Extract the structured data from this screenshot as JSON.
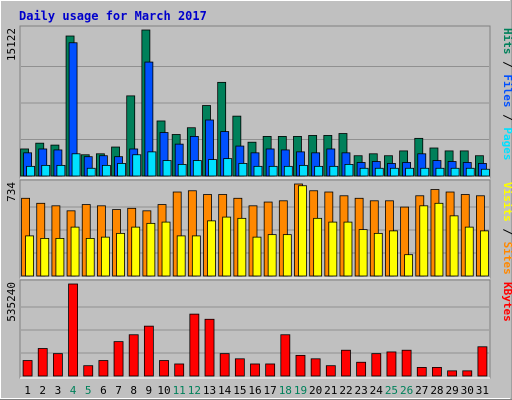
{
  "chart_data": {
    "type": "bar",
    "title": "Daily usage for March 2017",
    "categories": [
      "1",
      "2",
      "3",
      "4",
      "5",
      "6",
      "7",
      "8",
      "9",
      "10",
      "11",
      "12",
      "13",
      "14",
      "15",
      "16",
      "17",
      "18",
      "19",
      "20",
      "21",
      "22",
      "23",
      "24",
      "25",
      "26",
      "27",
      "28",
      "29",
      "30",
      "31"
    ],
    "weekend_days": [
      4,
      5,
      11,
      12,
      18,
      19,
      25,
      26
    ],
    "colors": {
      "title": "#0000cc",
      "background": "#c0c0c0",
      "hits": "#00805a",
      "files": "#0050ff",
      "pages": "#00e0ff",
      "visits": "#ff8800",
      "sites": "#ffff00",
      "kbytes": "#ff0000",
      "weekend_label": "#00805a"
    },
    "panels": [
      {
        "name": "hits-files-pages",
        "ymax_label": "15122",
        "ymax": 15122,
        "legend": [
          {
            "name": "Pages",
            "color": "#00e0ff"
          },
          {
            "name": "Files",
            "color": "#0050ff"
          },
          {
            "name": "Hits",
            "color": "#00805a"
          }
        ],
        "series": [
          {
            "name": "Hits",
            "values": [
              2800,
              3400,
              3200,
              14500,
              2200,
              2300,
              3000,
              8300,
              15122,
              5700,
              4300,
              5000,
              7300,
              9700,
              6200,
              3500,
              4100,
              4100,
              4100,
              4200,
              4200,
              4400,
              2100,
              2300,
              2100,
              2600,
              3900,
              2900,
              2600,
              2600,
              2100
            ]
          },
          {
            "name": "Files",
            "values": [
              2400,
              2800,
              2700,
              13800,
              2000,
              2100,
              2000,
              2800,
              11800,
              4500,
              3300,
              4100,
              5800,
              4600,
              3100,
              2400,
              2800,
              2700,
              2500,
              2400,
              2800,
              2400,
              1400,
              1500,
              1300,
              1400,
              2300,
              1600,
              1500,
              1400,
              1300
            ]
          },
          {
            "name": "Pages",
            "values": [
              1000,
              1100,
              1100,
              2300,
              800,
              1100,
              1300,
              2200,
              2500,
              1600,
              1200,
              1600,
              1700,
              1800,
              1300,
              1000,
              1000,
              1000,
              1100,
              1000,
              1000,
              1200,
              800,
              800,
              800,
              800,
              800,
              800,
              800,
              800,
              700
            ]
          }
        ]
      },
      {
        "name": "visits-sites",
        "ymax_label": "734",
        "ymax": 734,
        "legend": [
          {
            "name": "Sites",
            "color": "#ff8800"
          },
          {
            "name": "Visits",
            "color": "#ffff00"
          }
        ],
        "series": [
          {
            "name": "Visits",
            "values": [
              620,
              580,
              560,
              520,
              570,
              560,
              530,
              540,
              520,
              570,
              670,
              680,
              650,
              650,
              620,
              560,
              590,
              600,
              734,
              680,
              670,
              640,
              620,
              600,
              600,
              550,
              640,
              690,
              670,
              650,
              640
            ]
          },
          {
            "name": "Sites",
            "values": [
              320,
              300,
              300,
              390,
              300,
              310,
              340,
              390,
              420,
              430,
              320,
              320,
              440,
              470,
              460,
              310,
              330,
              330,
              720,
              460,
              430,
              430,
              370,
              340,
              360,
              170,
              560,
              580,
              480,
              390,
              360
            ]
          }
        ]
      },
      {
        "name": "kbytes",
        "ymax_label": "535240",
        "ymax": 535240,
        "legend": [
          {
            "name": "KBytes",
            "color": "#ff0000"
          }
        ],
        "series": [
          {
            "name": "KBytes",
            "values": [
              90000,
              160000,
              130000,
              535240,
              60000,
              90000,
              200000,
              240000,
              290000,
              90000,
              70000,
              360000,
              330000,
              130000,
              100000,
              70000,
              70000,
              240000,
              120000,
              100000,
              60000,
              150000,
              80000,
              130000,
              140000,
              150000,
              50000,
              50000,
              30000,
              30000,
              170000
            ]
          }
        ]
      }
    ]
  }
}
